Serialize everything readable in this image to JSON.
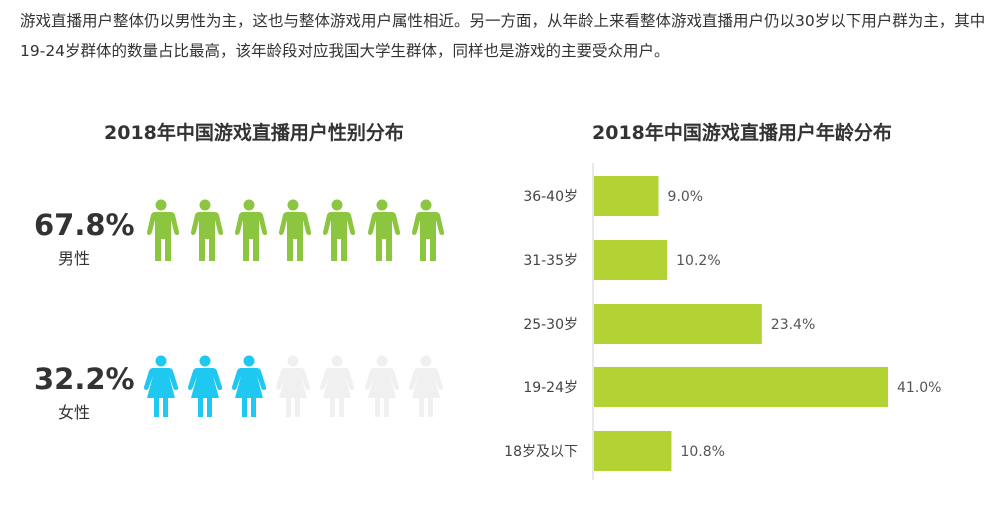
{
  "intro": "游戏直播用户整体仍以男性为主，这也与整体游戏用户属性相近。另一方面，从年龄上来看整体游戏直播用户仍以30岁以下用户群为主，其中19-24岁群体的数量占比最高，该年龄段对应我国大学生群体，同样也是游戏的主要受众用户。",
  "gender": {
    "title": "2018年中国游戏直播用户性别分布",
    "male": {
      "percent": "67.8%",
      "label": "男性",
      "icons_filled": 7,
      "icons_total": 7,
      "color": "#8cc540"
    },
    "female": {
      "percent": "32.2%",
      "label": "女性",
      "icons_filled": 3,
      "icons_total": 7,
      "color": "#1ec8f0",
      "empty_color": "#f0f0f0"
    }
  },
  "chart_data": {
    "type": "bar",
    "orientation": "horizontal",
    "title": "2018年中国游戏直播用户年龄分布",
    "categories": [
      "36-40岁",
      "31-35岁",
      "25-30岁",
      "19-24岁",
      "18岁及以下"
    ],
    "values": [
      9.0,
      10.2,
      23.4,
      41.0,
      10.8
    ],
    "value_labels": [
      "9.0%",
      "10.2%",
      "23.4%",
      "41.0%",
      "10.8%"
    ],
    "xlim": [
      0,
      41
    ],
    "grid": false,
    "color": "#b3d334"
  }
}
